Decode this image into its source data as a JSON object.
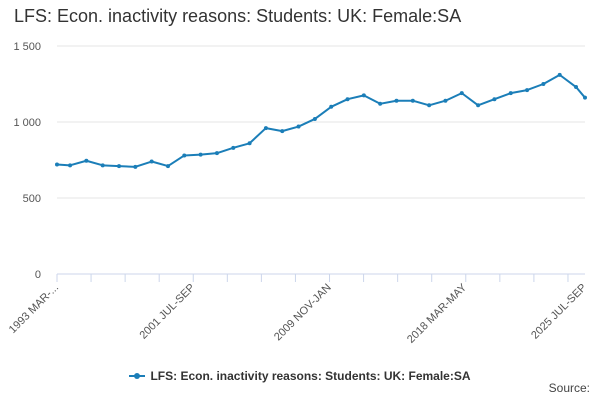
{
  "chart_data": {
    "type": "line",
    "title": "LFS: Econ. inactivity reasons: Students: UK: Female:SA",
    "xlabel": "",
    "ylabel": "",
    "ylim": [
      0,
      1500
    ],
    "y_ticks": [
      "0",
      "500",
      "1 000",
      "1 500"
    ],
    "y_tick_values": [
      0,
      500,
      1000,
      1500
    ],
    "x_tick_labels": [
      "1993 MAR-...",
      "2001 JUL-SEP",
      "2009 NOV-JAN",
      "2018 MAR-MAY",
      "2025 JUL-SEP"
    ],
    "x_tick_years": [
      1993.2,
      2001.55,
      2009.9,
      2018.2,
      2025.55
    ],
    "grid": true,
    "legend_position": "bottom",
    "series": [
      {
        "name": "LFS: Econ. inactivity reasons: Students: UK: Female:SA",
        "color": "#1b7eb8",
        "x": [
          1993.2,
          1994.0,
          1995.0,
          1996.0,
          1997.0,
          1998.0,
          1999.0,
          2000.0,
          2001.0,
          2002.0,
          2003.0,
          2004.0,
          2005.0,
          2006.0,
          2007.0,
          2008.0,
          2009.0,
          2010.0,
          2011.0,
          2012.0,
          2013.0,
          2014.0,
          2015.0,
          2016.0,
          2017.0,
          2018.0,
          2019.0,
          2020.0,
          2021.0,
          2022.0,
          2023.0,
          2024.0,
          2025.0,
          2025.55
        ],
        "values": [
          720,
          715,
          745,
          715,
          710,
          705,
          740,
          710,
          780,
          785,
          795,
          830,
          860,
          960,
          940,
          970,
          1020,
          1100,
          1150,
          1175,
          1120,
          1140,
          1140,
          1110,
          1140,
          1190,
          1110,
          1150,
          1190,
          1210,
          1250,
          1310,
          1230,
          1160
        ]
      }
    ]
  },
  "legend": {
    "label": "LFS: Econ. inactivity reasons: Students: UK: Female:SA"
  },
  "source": {
    "label": "Source:"
  }
}
